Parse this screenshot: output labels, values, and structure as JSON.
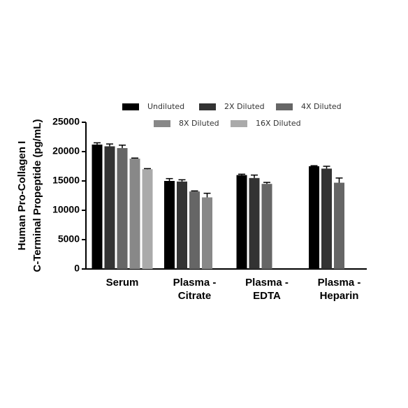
{
  "chart_data": {
    "type": "bar",
    "ylabel": [
      "Human Pro-Collagen I",
      "C-Terminal Propeptide (pg/mL)"
    ],
    "categories": [
      "Serum",
      "Plasma - Citrate",
      "Plasma - EDTA",
      "Plasma - Heparin"
    ],
    "series": [
      {
        "name": "Undiluted",
        "color": "#000000",
        "values": [
          21200,
          15000,
          16000,
          17500
        ],
        "errors": [
          300,
          400,
          150,
          100
        ]
      },
      {
        "name": "2X Diluted",
        "color": "#333333",
        "values": [
          20900,
          14900,
          15500,
          17100
        ],
        "errors": [
          400,
          300,
          500,
          400
        ]
      },
      {
        "name": "4X Diluted",
        "color": "#666666",
        "values": [
          20600,
          13200,
          14500,
          14700
        ],
        "errors": [
          500,
          100,
          250,
          800
        ]
      },
      {
        "name": "8X Diluted",
        "color": "#888888",
        "values": [
          18800,
          12200,
          null,
          null
        ],
        "errors": [
          100,
          700,
          null,
          null
        ]
      },
      {
        "name": "16X Diluted",
        "color": "#aaaaaa",
        "values": [
          17000,
          null,
          null,
          null
        ],
        "errors": [
          100,
          null,
          null,
          null
        ]
      }
    ],
    "ylim": [
      0,
      25000
    ],
    "yticks": [
      0,
      5000,
      10000,
      15000,
      20000,
      25000
    ]
  }
}
